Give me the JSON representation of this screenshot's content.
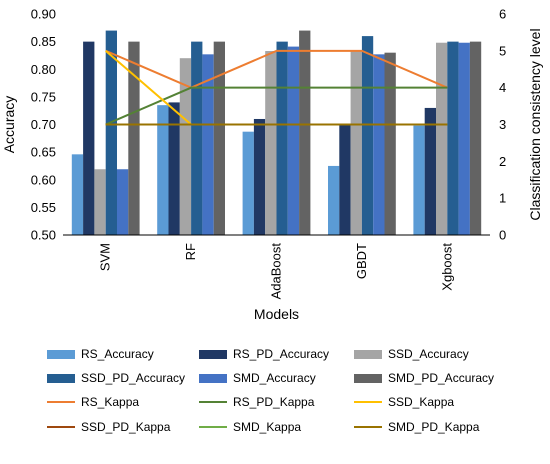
{
  "chart_data": {
    "type": "bar",
    "categories": [
      "SVM",
      "RF",
      "AdaBoost",
      "GBDT",
      "Xgboost"
    ],
    "xlabel": "Models",
    "ylabel": "Accuracy",
    "y2label": "Classification consistency level",
    "ylim": [
      0.5,
      0.9
    ],
    "y_ticks": [
      "0.50",
      "0.55",
      "0.60",
      "0.65",
      "0.70",
      "0.75",
      "0.80",
      "0.85",
      "0.90"
    ],
    "y2lim": [
      0,
      6
    ],
    "y2_ticks": [
      "0",
      "1",
      "2",
      "3",
      "4",
      "5",
      "6"
    ],
    "grid": false,
    "legend_position": "bottom",
    "bar_series": [
      {
        "name": "RS_Accuracy",
        "color": "#5b9bd5",
        "values": [
          0.646,
          0.735,
          0.687,
          0.625,
          0.698
        ]
      },
      {
        "name": "RS_PD_Accuracy",
        "color": "#203864",
        "values": [
          0.85,
          0.74,
          0.71,
          0.7,
          0.73
        ]
      },
      {
        "name": "SSD_Accuracy",
        "color": "#a5a5a5",
        "values": [
          0.619,
          0.82,
          0.833,
          0.833,
          0.848
        ]
      },
      {
        "name": "SSD_PD_Accuracy",
        "color": "#255e91",
        "values": [
          0.87,
          0.85,
          0.85,
          0.86,
          0.85
        ]
      },
      {
        "name": "SMD_Accuracy",
        "color": "#4472c4",
        "values": [
          0.619,
          0.827,
          0.841,
          0.827,
          0.848
        ]
      },
      {
        "name": "SMD_PD_Accuracy",
        "color": "#636363",
        "values": [
          0.85,
          0.85,
          0.87,
          0.83,
          0.85
        ]
      }
    ],
    "line_series": [
      {
        "name": "RS_Kappa",
        "color": "#ed7d31",
        "values": [
          5,
          4,
          5,
          5,
          4
        ]
      },
      {
        "name": "RS_PD_Kappa",
        "color": "#548235",
        "values": [
          3,
          4,
          4,
          4,
          4
        ]
      },
      {
        "name": "SSD_Kappa",
        "color": "#ffc000",
        "values": [
          5,
          3,
          3,
          3,
          3
        ]
      },
      {
        "name": "SSD_PD_Kappa",
        "color": "#9e480e",
        "values": [
          3,
          3,
          3,
          3,
          3
        ]
      },
      {
        "name": "SMD_Kappa",
        "color": "#70ad47",
        "values": [
          3,
          3,
          3,
          3,
          3
        ]
      },
      {
        "name": "SMD_PD_Kappa",
        "color": "#997300",
        "values": [
          3,
          3,
          3,
          3,
          3
        ]
      }
    ]
  }
}
